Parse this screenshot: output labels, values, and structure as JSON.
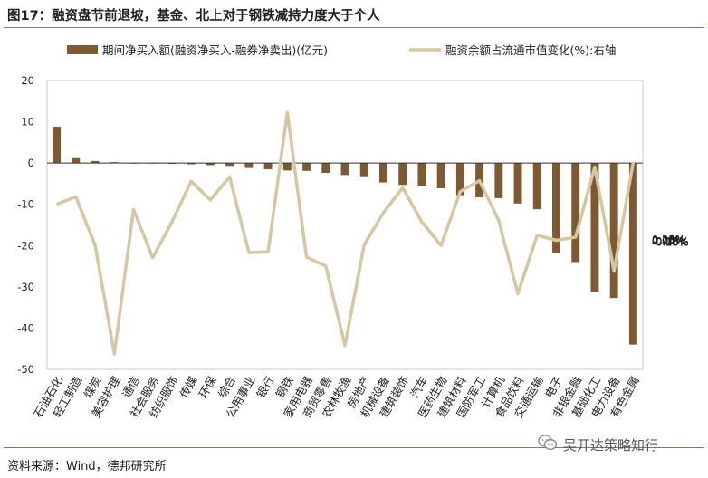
{
  "figure": {
    "title": "图17：融资盘节前退坡，基金、北上对于钢铁减持力度大于个人",
    "source": "资料来源：Wind，德邦研究所",
    "watermark": "吴开达策略知行"
  },
  "colors": {
    "bar": "#7e5a33",
    "line": "#d6c6a2",
    "rule": "#a07040",
    "zero_line": "#333333"
  },
  "chart_data": {
    "type": "bar",
    "categories": [
      "石油石化",
      "轻工制造",
      "煤炭",
      "美容护理",
      "通信",
      "社会服务",
      "纺织服饰",
      "传媒",
      "环保",
      "综合",
      "公用事业",
      "银行",
      "钢铁",
      "家用电器",
      "商贸零售",
      "农林牧渔",
      "房地产",
      "机械设备",
      "建筑装饰",
      "汽车",
      "医药生物",
      "建筑材料",
      "国防军工",
      "计算机",
      "食品饮料",
      "交通运输",
      "电子",
      "非银金融",
      "基础化工",
      "电力设备",
      "有色金属"
    ],
    "series": [
      {
        "name": "期间净买入额(融资净买入-融券净卖出)(亿元)",
        "type": "bar",
        "axis": "left",
        "values": [
          8.8,
          1.4,
          0.5,
          0.2,
          -0.1,
          -0.1,
          -0.2,
          -0.3,
          -0.5,
          -0.7,
          -1.2,
          -1.5,
          -1.8,
          -1.9,
          -2.4,
          -2.9,
          -3.2,
          -4.7,
          -5.3,
          -5.6,
          -6.1,
          -7.8,
          -8.3,
          -8.5,
          -9.8,
          -11.2,
          -21.8,
          -24.0,
          -31.3,
          -32.7,
          -44.0
        ]
      },
      {
        "name": "融资余额占流通市值变化(%):右轴",
        "type": "line",
        "axis": "right",
        "values": [
          0.057,
          0.069,
          -0.007,
          -0.176,
          0.049,
          -0.026,
          0.03,
          0.093,
          0.064,
          0.1,
          -0.018,
          -0.017,
          0.2,
          -0.025,
          -0.039,
          -0.163,
          -0.006,
          0.044,
          0.083,
          0.03,
          -0.007,
          0.077,
          0.094,
          0.032,
          -0.082,
          0.009,
          0.001,
          0.006,
          0.115,
          -0.047,
          0.123
        ]
      }
    ],
    "y_left": {
      "min": -50,
      "max": 20,
      "ticks": [
        "20",
        "10",
        "0",
        "-10",
        "-20",
        "-30",
        "-40",
        "-50"
      ]
    },
    "y_right": {
      "min": -0.2,
      "max": 0.25,
      "ticks": [
        "0.25%",
        "0.20%",
        "0.15%",
        "0.10%",
        "0.05%",
        "0.00%",
        "-0.05%",
        "-0.10%",
        "-0.15%",
        "-0.20%"
      ]
    },
    "legend": {
      "bar_label": "期间净买入额(融资净买入-融券净卖出)(亿元)",
      "line_label": "融资余额占流通市值变化(%):右轴",
      "position": "top"
    },
    "grid": false
  }
}
